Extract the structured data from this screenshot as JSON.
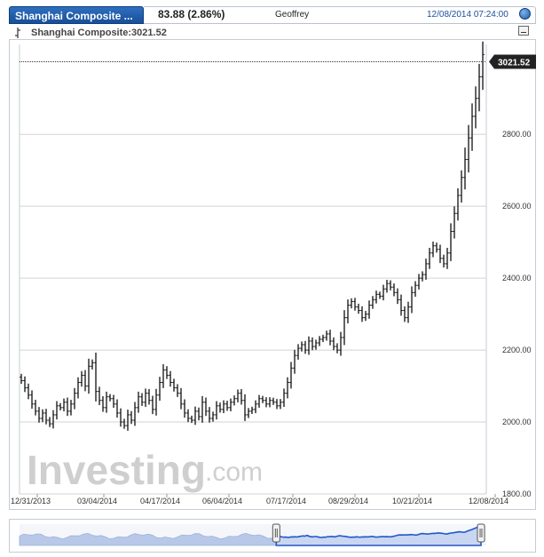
{
  "header": {
    "tab_label": "Shanghai Composite ...",
    "change": "83.88 (2.86%)",
    "user": "Geoffrey",
    "datetime": "12/08/2014 07:24:00"
  },
  "legend": {
    "series_label": "Shanghai Composite:3021.52"
  },
  "watermark": {
    "brand": "Investing",
    "suffix": ".com"
  },
  "colors": {
    "accent": "#1d4e9c",
    "tab_blue": "#174f98",
    "navigator_fill": "#2357c8",
    "navigator_faded": "#b8c8e8"
  },
  "chart_data": {
    "type": "ohlc",
    "ylim": [
      1800,
      3050
    ],
    "yticks": [
      1800,
      2000,
      2200,
      2400,
      2600,
      2800
    ],
    "ytick_labels": [
      "1800.00",
      "2000.00",
      "2200.00",
      "2400.00",
      "2600.00",
      "2800.00"
    ],
    "xtick_labels": [
      "12/31/2013",
      "03/04/2014",
      "04/17/2014",
      "06/04/2014",
      "07/17/2014",
      "08/29/2014",
      "10/21/2014",
      "12/08/2014"
    ],
    "last_value": 3021.52,
    "last_value_label": "3021.52",
    "grid": true,
    "close_series": [
      2115,
      2095,
      2075,
      2050,
      2030,
      2010,
      2025,
      2005,
      1995,
      2020,
      2045,
      2040,
      2055,
      2030,
      2050,
      2080,
      2110,
      2130,
      2100,
      2155,
      2165,
      2085,
      2060,
      2040,
      2070,
      2065,
      2050,
      2025,
      2000,
      1990,
      2020,
      2005,
      2040,
      2070,
      2055,
      2080,
      2060,
      2035,
      2075,
      2110,
      2145,
      2130,
      2110,
      2095,
      2080,
      2050,
      2025,
      2010,
      2005,
      2030,
      2015,
      2055,
      2030,
      2010,
      2020,
      2045,
      2035,
      2050,
      2040,
      2055,
      2065,
      2080,
      2060,
      2020,
      2030,
      2035,
      2050,
      2065,
      2060,
      2050,
      2060,
      2055,
      2045,
      2055,
      2080,
      2110,
      2150,
      2185,
      2205,
      2215,
      2200,
      2225,
      2210,
      2220,
      2230,
      2235,
      2245,
      2225,
      2210,
      2200,
      2235,
      2290,
      2325,
      2335,
      2320,
      2310,
      2290,
      2300,
      2325,
      2340,
      2355,
      2350,
      2370,
      2385,
      2375,
      2360,
      2340,
      2310,
      2290,
      2320,
      2360,
      2380,
      2400,
      2410,
      2440,
      2470,
      2490,
      2480,
      2455,
      2440,
      2470,
      2530,
      2580,
      2630,
      2680,
      2730,
      2790,
      2850,
      2900,
      2960,
      3021.52
    ]
  }
}
